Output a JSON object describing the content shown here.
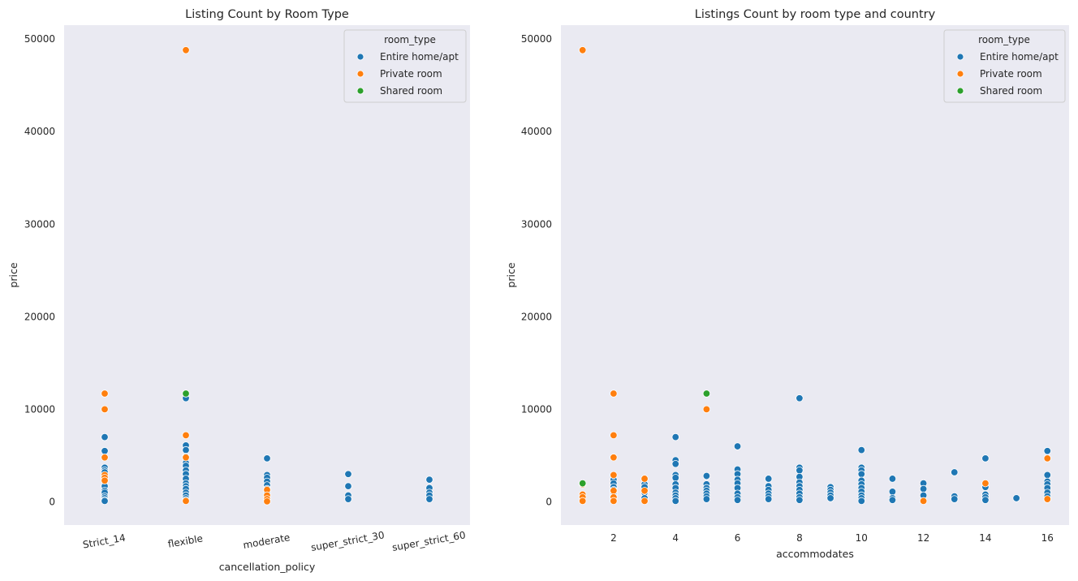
{
  "palette": {
    "Entire home/apt": "#1f77b4",
    "Private room": "#ff7f0e",
    "Shared room": "#2ca02c",
    "plot_background": "#eaeaf2"
  },
  "chart_data": [
    {
      "type": "scatter",
      "title": "Listing Count by Room Type",
      "xlabel": "cancellation_policy",
      "ylabel": "price",
      "x_type": "categorical",
      "categories": [
        "Strict_14",
        "flexible",
        "moderate",
        "super_strict_30",
        "super_strict_60"
      ],
      "ylim": [
        -2500,
        51500
      ],
      "yticks": [
        0,
        10000,
        20000,
        30000,
        40000,
        50000
      ],
      "grid": false,
      "legend": {
        "title": "room_type",
        "position": "top-right",
        "entries": [
          "Entire home/apt",
          "Private room",
          "Shared room"
        ]
      },
      "series": [
        {
          "name": "Entire home/apt",
          "points": [
            [
              "Strict_14",
              7000
            ],
            [
              "Strict_14",
              5500
            ],
            [
              "Strict_14",
              3700
            ],
            [
              "Strict_14",
              3400
            ],
            [
              "Strict_14",
              3200
            ],
            [
              "Strict_14",
              2500
            ],
            [
              "Strict_14",
              1700
            ],
            [
              "Strict_14",
              1200
            ],
            [
              "Strict_14",
              1000
            ],
            [
              "Strict_14",
              600
            ],
            [
              "Strict_14",
              400
            ],
            [
              "Strict_14",
              200
            ],
            [
              "Strict_14",
              100
            ],
            [
              "flexible",
              11200
            ],
            [
              "flexible",
              6100
            ],
            [
              "flexible",
              5600
            ],
            [
              "flexible",
              4900
            ],
            [
              "flexible",
              4200
            ],
            [
              "flexible",
              3900
            ],
            [
              "flexible",
              3400
            ],
            [
              "flexible",
              3000
            ],
            [
              "flexible",
              2500
            ],
            [
              "flexible",
              2000
            ],
            [
              "flexible",
              1700
            ],
            [
              "flexible",
              1400
            ],
            [
              "flexible",
              1000
            ],
            [
              "flexible",
              700
            ],
            [
              "flexible",
              400
            ],
            [
              "flexible",
              200
            ],
            [
              "moderate",
              4700
            ],
            [
              "moderate",
              2900
            ],
            [
              "moderate",
              2600
            ],
            [
              "moderate",
              2200
            ],
            [
              "moderate",
              1800
            ],
            [
              "moderate",
              1400
            ],
            [
              "moderate",
              1000
            ],
            [
              "moderate",
              700
            ],
            [
              "moderate",
              400
            ],
            [
              "moderate",
              200
            ],
            [
              "moderate",
              100
            ],
            [
              "super_strict_30",
              3000
            ],
            [
              "super_strict_30",
              1700
            ],
            [
              "super_strict_30",
              700
            ],
            [
              "super_strict_30",
              300
            ],
            [
              "super_strict_60",
              2400
            ],
            [
              "super_strict_60",
              1500
            ],
            [
              "super_strict_60",
              1000
            ],
            [
              "super_strict_60",
              700
            ],
            [
              "super_strict_60",
              300
            ]
          ]
        },
        {
          "name": "Private room",
          "points": [
            [
              "Strict_14",
              11700
            ],
            [
              "Strict_14",
              10000
            ],
            [
              "Strict_14",
              4800
            ],
            [
              "Strict_14",
              2900
            ],
            [
              "Strict_14",
              2600
            ],
            [
              "Strict_14",
              2300
            ],
            [
              "flexible",
              48800
            ],
            [
              "flexible",
              7200
            ],
            [
              "flexible",
              4800
            ],
            [
              "flexible",
              100
            ],
            [
              "moderate",
              1300
            ],
            [
              "moderate",
              700
            ],
            [
              "moderate",
              300
            ],
            [
              "moderate",
              50
            ]
          ]
        },
        {
          "name": "Shared room",
          "points": [
            [
              "flexible",
              11700
            ]
          ]
        }
      ]
    },
    {
      "type": "scatter",
      "title": "Listings Count by room type and country",
      "xlabel": "accommodates",
      "ylabel": "price",
      "x_type": "numeric",
      "xlim": [
        0.3,
        16.7
      ],
      "xticks": [
        2,
        4,
        6,
        8,
        10,
        12,
        14,
        16
      ],
      "ylim": [
        -2500,
        51500
      ],
      "yticks": [
        0,
        10000,
        20000,
        30000,
        40000,
        50000
      ],
      "grid": false,
      "legend": {
        "title": "room_type",
        "position": "top-right",
        "entries": [
          "Entire home/apt",
          "Private room",
          "Shared room"
        ]
      },
      "series": [
        {
          "name": "Entire home/apt",
          "points": [
            [
              2,
              2400
            ],
            [
              2,
              2000
            ],
            [
              2,
              1600
            ],
            [
              2,
              1300
            ],
            [
              2,
              1000
            ],
            [
              2,
              800
            ],
            [
              2,
              600
            ],
            [
              2,
              400
            ],
            [
              2,
              200
            ],
            [
              3,
              1900
            ],
            [
              3,
              1600
            ],
            [
              3,
              1000
            ],
            [
              3,
              400
            ],
            [
              4,
              7000
            ],
            [
              4,
              4500
            ],
            [
              4,
              4100
            ],
            [
              4,
              2900
            ],
            [
              4,
              2600
            ],
            [
              4,
              1900
            ],
            [
              4,
              1500
            ],
            [
              4,
              1000
            ],
            [
              4,
              700
            ],
            [
              4,
              400
            ],
            [
              4,
              100
            ],
            [
              5,
              2800
            ],
            [
              5,
              1900
            ],
            [
              5,
              1500
            ],
            [
              5,
              1200
            ],
            [
              5,
              900
            ],
            [
              5,
              600
            ],
            [
              5,
              300
            ],
            [
              6,
              6000
            ],
            [
              6,
              3500
            ],
            [
              6,
              3000
            ],
            [
              6,
              2400
            ],
            [
              6,
              2000
            ],
            [
              6,
              1500
            ],
            [
              6,
              900
            ],
            [
              6,
              500
            ],
            [
              6,
              200
            ],
            [
              7,
              2500
            ],
            [
              7,
              1700
            ],
            [
              7,
              1300
            ],
            [
              7,
              900
            ],
            [
              7,
              600
            ],
            [
              7,
              300
            ],
            [
              8,
              11200
            ],
            [
              8,
              3700
            ],
            [
              8,
              3400
            ],
            [
              8,
              2700
            ],
            [
              8,
              2100
            ],
            [
              8,
              1700
            ],
            [
              8,
              1300
            ],
            [
              8,
              900
            ],
            [
              8,
              500
            ],
            [
              8,
              200
            ],
            [
              9,
              1600
            ],
            [
              9,
              1300
            ],
            [
              9,
              1000
            ],
            [
              9,
              700
            ],
            [
              9,
              400
            ],
            [
              10,
              5600
            ],
            [
              10,
              3700
            ],
            [
              10,
              3400
            ],
            [
              10,
              3000
            ],
            [
              10,
              2300
            ],
            [
              10,
              1900
            ],
            [
              10,
              1500
            ],
            [
              10,
              1100
            ],
            [
              10,
              700
            ],
            [
              10,
              400
            ],
            [
              10,
              100
            ],
            [
              11,
              2500
            ],
            [
              11,
              1100
            ],
            [
              11,
              400
            ],
            [
              11,
              200
            ],
            [
              12,
              2000
            ],
            [
              12,
              1400
            ],
            [
              12,
              700
            ],
            [
              13,
              3200
            ],
            [
              13,
              600
            ],
            [
              13,
              300
            ],
            [
              14,
              4700
            ],
            [
              14,
              1600
            ],
            [
              14,
              800
            ],
            [
              14,
              500
            ],
            [
              14,
              200
            ],
            [
              15,
              400
            ],
            [
              16,
              5500
            ],
            [
              16,
              2900
            ],
            [
              16,
              2200
            ],
            [
              16,
              1900
            ],
            [
              16,
              1500
            ],
            [
              16,
              1000
            ],
            [
              16,
              600
            ],
            [
              16,
              300
            ]
          ]
        },
        {
          "name": "Private room",
          "points": [
            [
              1,
              48800
            ],
            [
              1,
              1900
            ],
            [
              1,
              800
            ],
            [
              1,
              500
            ],
            [
              1,
              100
            ],
            [
              2,
              11700
            ],
            [
              2,
              7200
            ],
            [
              2,
              4800
            ],
            [
              2,
              2900
            ],
            [
              2,
              1200
            ],
            [
              2,
              500
            ],
            [
              2,
              100
            ],
            [
              3,
              2500
            ],
            [
              3,
              1200
            ],
            [
              3,
              100
            ],
            [
              5,
              10000
            ],
            [
              12,
              100
            ],
            [
              14,
              2000
            ],
            [
              16,
              4700
            ],
            [
              16,
              300
            ]
          ]
        },
        {
          "name": "Shared room",
          "points": [
            [
              1,
              2000
            ],
            [
              5,
              11700
            ]
          ]
        }
      ]
    }
  ]
}
